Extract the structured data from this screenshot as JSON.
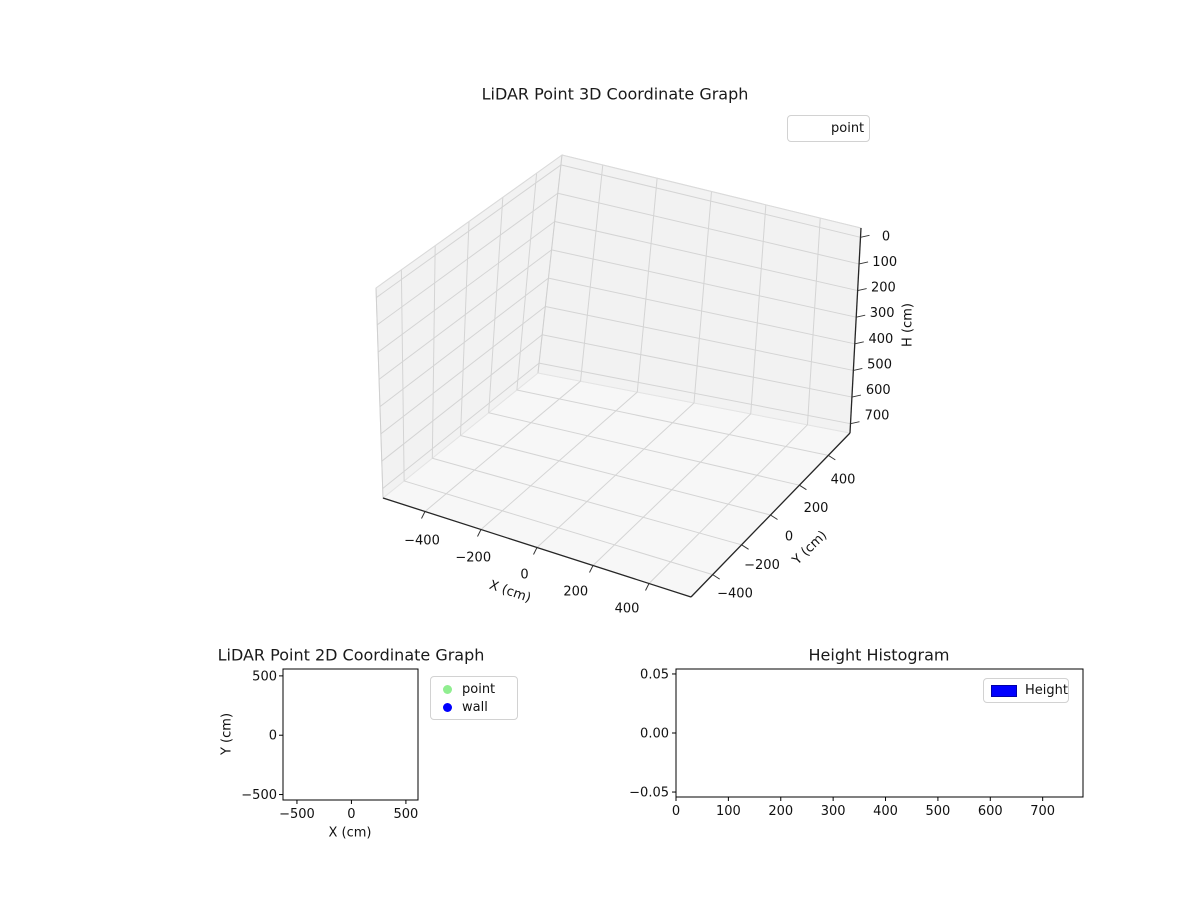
{
  "figure": {
    "background": "#ffffff"
  },
  "chart_data": [
    {
      "type": "scatter",
      "projection": "3d",
      "title": "LiDAR Point 3D Coordinate Graph",
      "xlabel": "X (cm)",
      "ylabel": "Y (cm)",
      "zlabel": "H (cm)",
      "x_ticks": [
        -400,
        -200,
        0,
        200,
        400
      ],
      "y_ticks": [
        -400,
        -200,
        0,
        200,
        400
      ],
      "z_ticks": [
        0,
        100,
        200,
        300,
        400,
        500,
        600,
        700
      ],
      "xlim": [
        -550,
        550
      ],
      "ylim": [
        -550,
        550
      ],
      "zlim": [
        -35,
        735
      ],
      "zaxis_inverted": true,
      "grid": true,
      "pane_color": "#f2f2f2",
      "floor_color": "#f7f7f7",
      "grid_color": "#d4d4d4",
      "legend": {
        "location": "upper right",
        "entries": [
          {
            "label": "point",
            "marker": "none",
            "color": null
          }
        ]
      },
      "series": [
        {
          "name": "point",
          "points": []
        }
      ]
    },
    {
      "type": "scatter",
      "projection": "2d",
      "title": "LiDAR Point 2D Coordinate Graph",
      "xlabel": "X (cm)",
      "ylabel": "Y (cm)",
      "x_ticks": [
        -500,
        0,
        500
      ],
      "y_ticks": [
        500,
        0,
        -500
      ],
      "xlim": [
        -628,
        611
      ],
      "ylim": [
        -546,
        558
      ],
      "grid": false,
      "legend": {
        "location": "outside right",
        "entries": [
          {
            "label": "point",
            "marker": "circle",
            "color": "#90EE90"
          },
          {
            "label": "wall",
            "marker": "circle",
            "color": "#0000FF"
          }
        ]
      },
      "series": [
        {
          "name": "point",
          "points": []
        },
        {
          "name": "wall",
          "points": []
        }
      ]
    },
    {
      "type": "histogram",
      "title": "Height Histogram",
      "xlabel": "",
      "ylabel": "",
      "x_ticks": [
        0,
        100,
        200,
        300,
        400,
        500,
        600,
        700
      ],
      "y_ticks": [
        0.05,
        0.0,
        -0.05
      ],
      "y_tick_labels": [
        "0.05",
        "0.00",
        "−0.05"
      ],
      "xlim": [
        0,
        777
      ],
      "ylim": [
        -0.0542,
        0.0542
      ],
      "grid": false,
      "legend": {
        "location": "upper right",
        "entries": [
          {
            "label": "Height",
            "marker": "rect",
            "color": "#0000FF"
          }
        ]
      },
      "values": []
    }
  ]
}
